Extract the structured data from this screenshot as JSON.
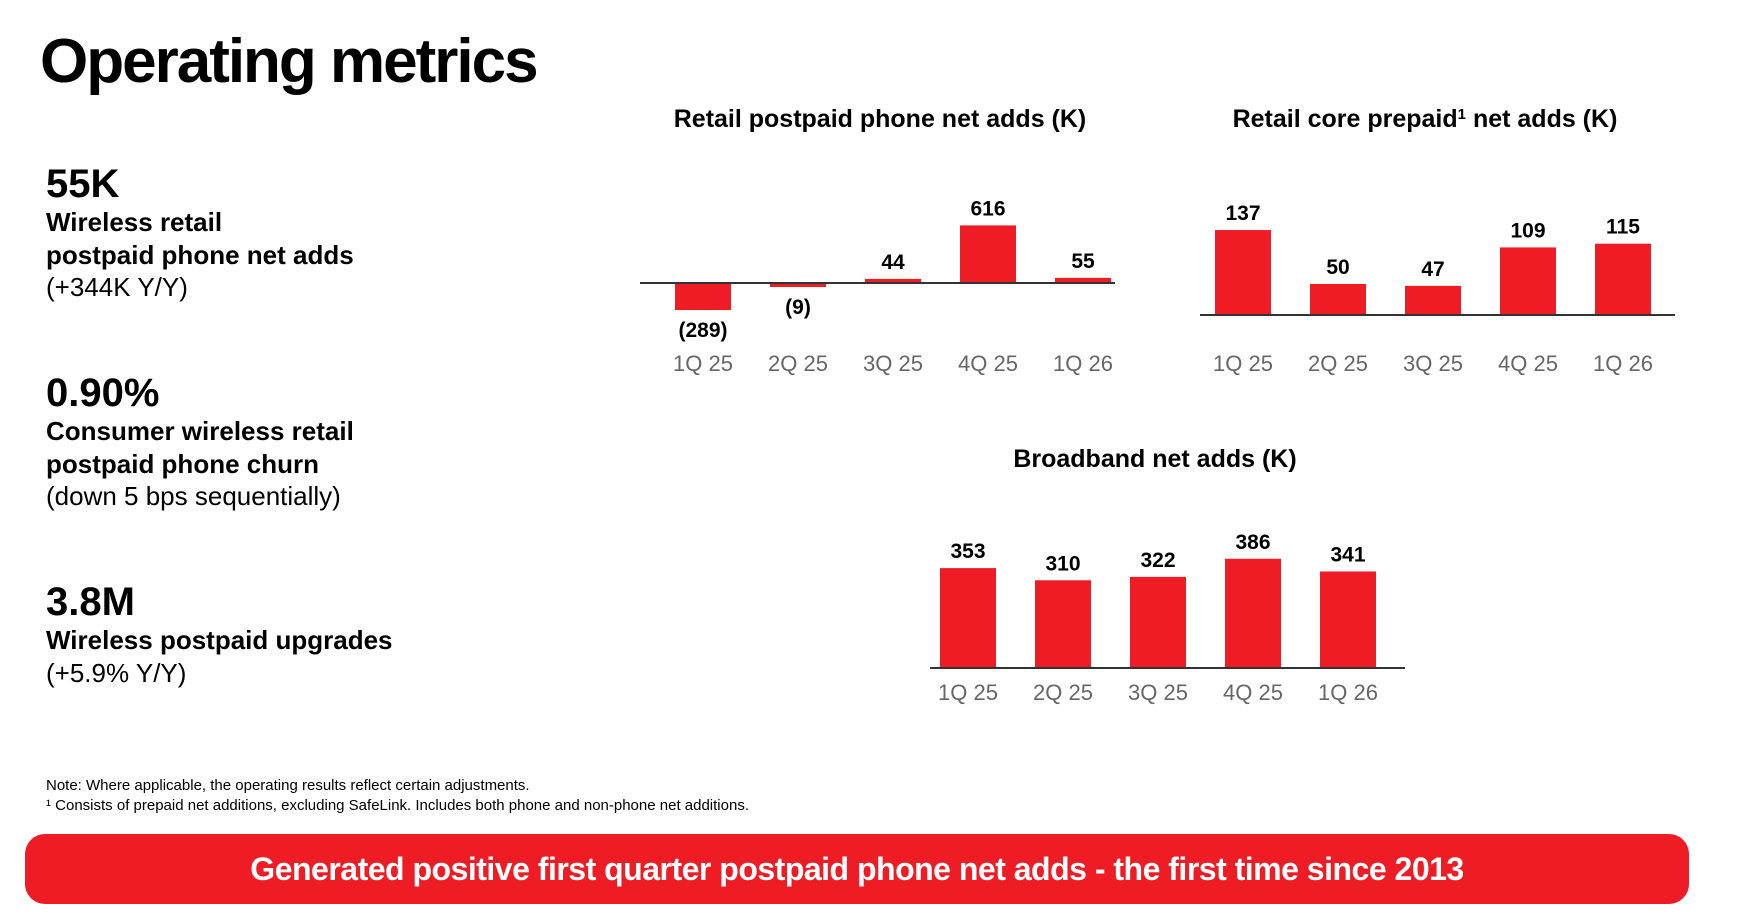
{
  "page": {
    "title": "Operating metrics",
    "accent_color": "#ee1c25"
  },
  "metrics": [
    {
      "value": "55K",
      "label": "Wireless retail\npostpaid phone net adds",
      "sub": "(+344K Y/Y)"
    },
    {
      "value": "0.90%",
      "label": "Consumer wireless retail\npostpaid phone churn",
      "sub": "(down 5 bps sequentially)"
    },
    {
      "value": "3.8M",
      "label": "Wireless postpaid upgrades",
      "sub": "(+5.9% Y/Y)"
    }
  ],
  "chart_data": [
    {
      "type": "bar",
      "title": "Retail postpaid phone net adds (K)",
      "categories": [
        "1Q 25",
        "2Q 25",
        "3Q 25",
        "4Q 25",
        "1Q 26"
      ],
      "values": [
        -289,
        -9,
        44,
        616,
        55
      ],
      "value_labels": [
        "(289)",
        "(9)",
        "44",
        "616",
        "55"
      ],
      "color": "#ee1c25"
    },
    {
      "type": "bar",
      "title": "Retail core prepaid",
      "title_superscript": "1",
      "title_suffix": " net adds (K)",
      "categories": [
        "1Q 25",
        "2Q 25",
        "3Q 25",
        "4Q 25",
        "1Q 26"
      ],
      "values": [
        137,
        50,
        47,
        109,
        115
      ],
      "value_labels": [
        "137",
        "50",
        "47",
        "109",
        "115"
      ],
      "color": "#ee1c25"
    },
    {
      "type": "bar",
      "title": "Broadband net adds (K)",
      "categories": [
        "1Q 25",
        "2Q 25",
        "3Q 25",
        "4Q 25",
        "1Q 26"
      ],
      "values": [
        353,
        310,
        322,
        386,
        341
      ],
      "value_labels": [
        "353",
        "310",
        "322",
        "386",
        "341"
      ],
      "color": "#ee1c25"
    }
  ],
  "notes": {
    "line1": "Note: Where applicable, the operating results reflect certain adjustments.",
    "line2": "¹ Consists of prepaid net additions, excluding SafeLink. Includes both phone and non-phone net additions."
  },
  "banner": {
    "text": "Generated positive first quarter postpaid phone net adds - the first time since 2013"
  }
}
